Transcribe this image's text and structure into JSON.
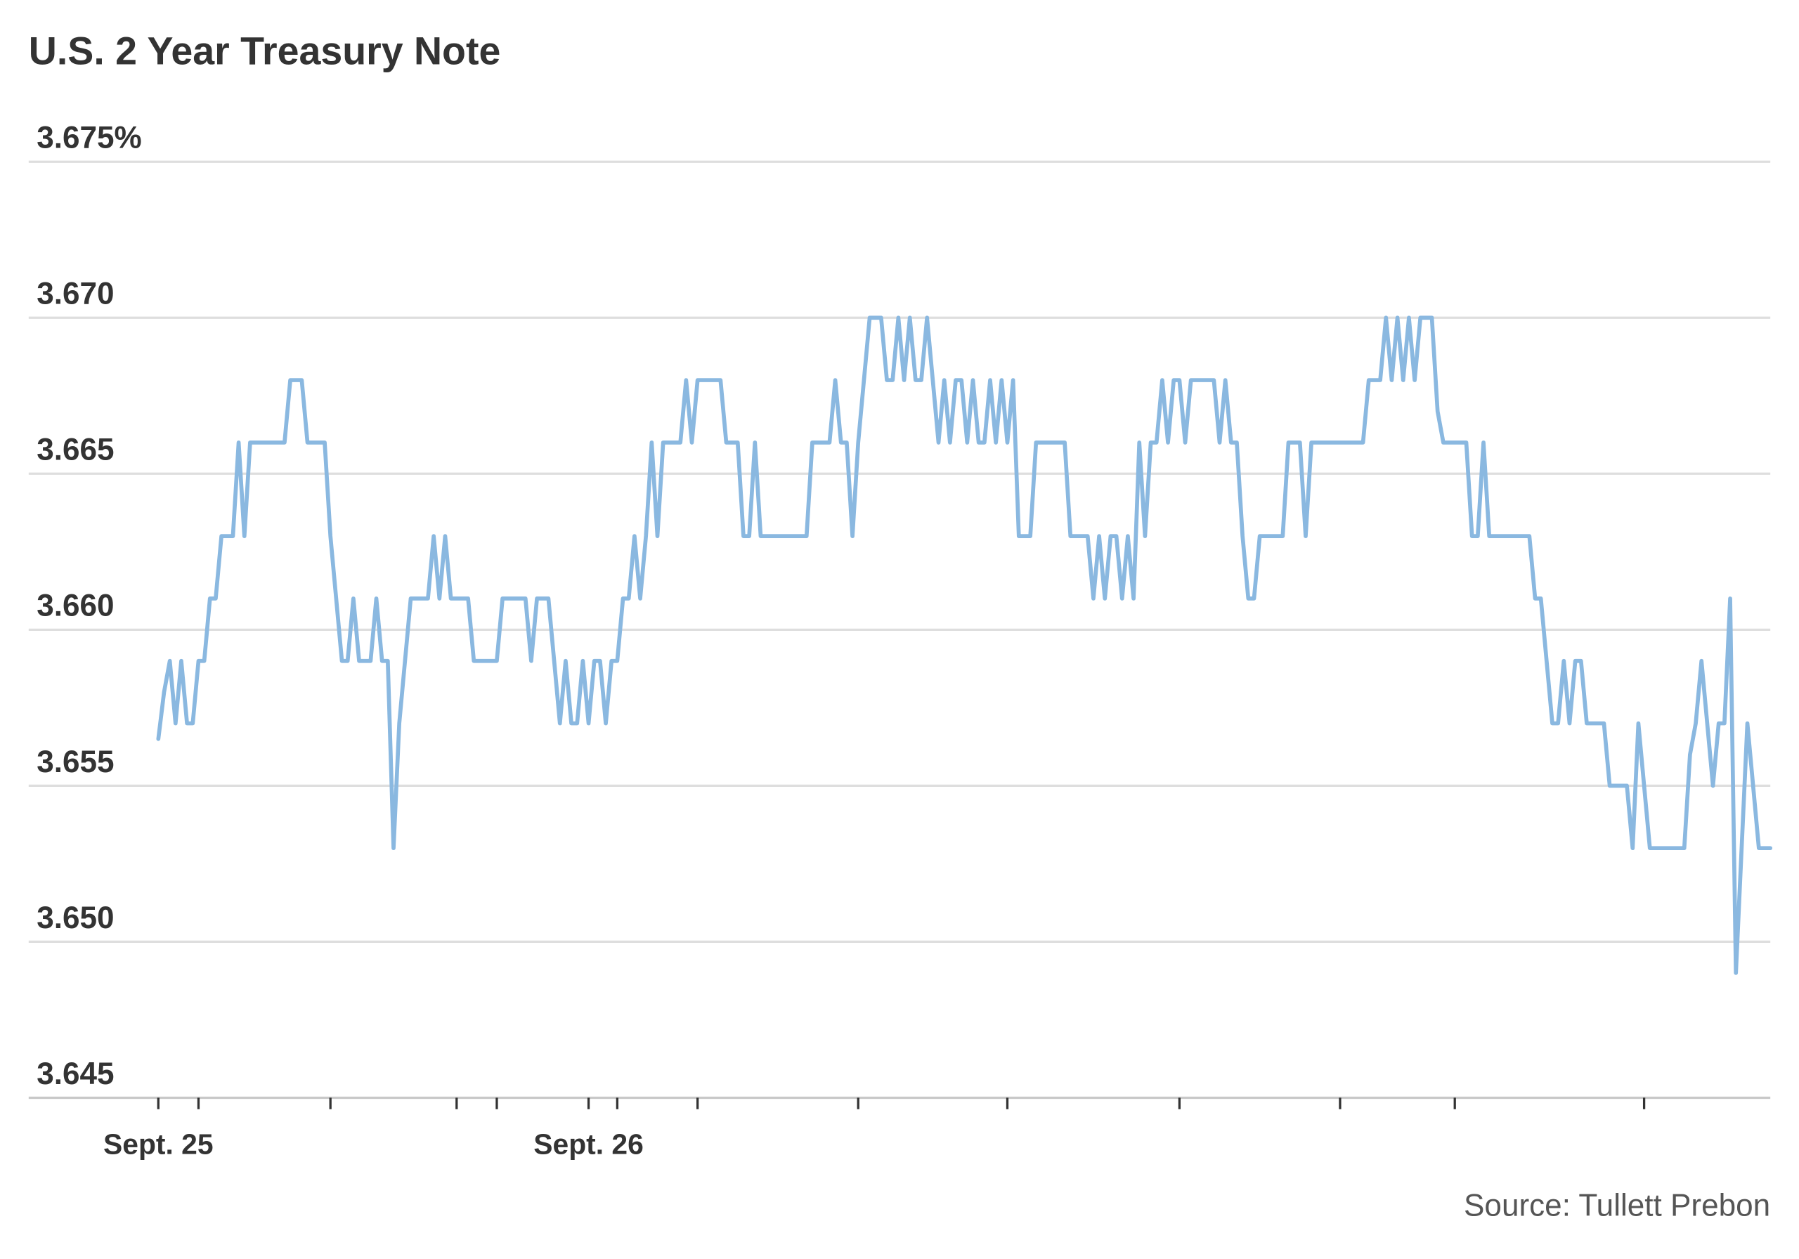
{
  "chart_data": {
    "type": "line",
    "title": "U.S. 2 Year Treasury Note",
    "source": "Source: Tullett Prebon",
    "color": "#8ab8e0",
    "grid": true,
    "ylim": [
      3.645,
      3.675
    ],
    "yticks": [
      3.645,
      {
        "value": 3.65,
        "label": "3.650"
      },
      3.655,
      {
        "value": 3.66,
        "label": "3.660"
      },
      3.665,
      {
        "value": 3.67,
        "label": "3.670"
      },
      {
        "value": 3.675,
        "label": "3.675%"
      }
    ],
    "xticks": [
      0,
      7,
      30,
      52,
      59,
      75,
      80,
      94,
      122,
      148,
      178,
      206,
      226,
      259
    ],
    "categories": [
      "Sept. 25",
      null,
      null,
      null,
      null,
      null,
      null,
      null,
      null,
      null,
      null,
      null,
      null,
      null,
      null,
      null,
      null,
      null,
      null,
      null,
      null,
      null,
      null,
      null,
      null,
      null,
      null,
      null,
      null,
      null,
      null,
      null,
      null,
      null,
      null,
      null,
      null,
      null,
      null,
      null,
      null,
      null,
      null,
      null,
      null,
      null,
      null,
      null,
      null,
      null,
      null,
      null,
      null,
      null,
      null,
      null,
      null,
      null,
      null,
      null,
      null,
      null,
      null,
      null,
      null,
      null,
      null,
      null,
      null,
      null,
      null,
      null,
      null,
      null,
      null,
      "Sept. 26",
      null,
      null,
      null,
      null,
      null,
      null,
      null,
      null,
      null,
      null,
      null,
      null,
      null,
      null,
      null,
      null,
      null,
      null,
      null,
      null,
      null,
      null,
      null,
      null,
      null,
      null,
      null,
      null,
      null,
      null,
      null,
      null,
      null,
      null,
      null,
      null,
      null,
      null,
      null,
      null,
      null,
      null,
      null,
      null,
      null,
      null,
      null,
      null,
      null,
      null,
      null,
      null,
      null,
      null,
      null,
      null,
      null,
      null,
      null,
      null,
      null,
      null,
      null,
      null,
      null,
      null,
      null,
      null,
      null,
      null,
      null,
      null,
      null,
      null,
      null,
      null,
      null,
      null,
      null,
      null,
      null,
      null,
      null,
      null,
      null,
      null,
      null,
      null,
      null,
      null,
      null,
      null,
      null,
      null,
      null,
      null,
      null,
      null,
      null,
      null,
      null,
      null,
      null,
      null,
      null,
      null,
      null,
      null,
      null,
      null,
      null,
      null,
      null,
      null,
      null,
      null,
      null,
      null,
      null,
      null,
      null,
      null,
      null,
      null,
      null,
      null,
      null,
      null,
      null,
      null,
      null,
      null,
      null,
      null,
      null,
      null,
      null,
      null,
      null,
      null,
      null,
      null,
      null,
      null,
      null,
      null,
      null,
      null,
      null,
      null,
      null,
      null,
      null,
      null,
      null,
      null,
      null,
      null,
      null,
      null,
      null,
      null,
      null,
      null,
      null,
      null,
      null,
      null,
      null,
      null,
      null,
      null,
      null,
      null,
      null,
      null,
      null,
      null,
      null,
      null,
      null,
      null,
      null,
      null,
      null,
      null,
      null,
      null,
      null,
      null,
      null,
      null,
      null,
      null,
      null,
      null,
      null,
      null,
      null,
      null,
      null,
      null,
      null,
      null,
      null,
      null
    ],
    "values": [
      3.6565,
      3.658,
      3.659,
      3.657,
      3.659,
      3.657,
      3.657,
      3.659,
      3.659,
      3.661,
      3.661,
      3.663,
      3.663,
      3.663,
      3.666,
      3.663,
      3.666,
      3.666,
      3.666,
      3.666,
      3.666,
      3.666,
      3.666,
      3.668,
      3.668,
      3.668,
      3.666,
      3.666,
      3.666,
      3.666,
      3.663,
      3.661,
      3.659,
      3.659,
      3.661,
      3.659,
      3.659,
      3.659,
      3.661,
      3.659,
      3.659,
      3.653,
      3.657,
      3.659,
      3.661,
      3.661,
      3.661,
      3.661,
      3.663,
      3.661,
      3.663,
      3.661,
      3.661,
      3.661,
      3.661,
      3.659,
      3.659,
      3.659,
      3.659,
      3.659,
      3.661,
      3.661,
      3.661,
      3.661,
      3.661,
      3.659,
      3.661,
      3.661,
      3.661,
      3.659,
      3.657,
      3.659,
      3.657,
      3.657,
      3.659,
      3.657,
      3.659,
      3.659,
      3.657,
      3.659,
      3.659,
      3.661,
      3.661,
      3.663,
      3.661,
      3.663,
      3.666,
      3.663,
      3.666,
      3.666,
      3.666,
      3.666,
      3.668,
      3.666,
      3.668,
      3.668,
      3.668,
      3.668,
      3.668,
      3.666,
      3.666,
      3.666,
      3.663,
      3.663,
      3.666,
      3.663,
      3.663,
      3.663,
      3.663,
      3.663,
      3.663,
      3.663,
      3.663,
      3.663,
      3.666,
      3.666,
      3.666,
      3.666,
      3.668,
      3.666,
      3.666,
      3.663,
      3.666,
      3.668,
      3.67,
      3.67,
      3.67,
      3.668,
      3.668,
      3.67,
      3.668,
      3.67,
      3.668,
      3.668,
      3.67,
      3.668,
      3.666,
      3.668,
      3.666,
      3.668,
      3.668,
      3.666,
      3.668,
      3.666,
      3.666,
      3.668,
      3.666,
      3.668,
      3.666,
      3.668,
      3.663,
      3.663,
      3.663,
      3.666,
      3.666,
      3.666,
      3.666,
      3.666,
      3.666,
      3.663,
      3.663,
      3.663,
      3.663,
      3.661,
      3.663,
      3.661,
      3.663,
      3.663,
      3.661,
      3.663,
      3.661,
      3.666,
      3.663,
      3.666,
      3.666,
      3.668,
      3.666,
      3.668,
      3.668,
      3.666,
      3.668,
      3.668,
      3.668,
      3.668,
      3.668,
      3.666,
      3.668,
      3.666,
      3.666,
      3.663,
      3.661,
      3.661,
      3.663,
      3.663,
      3.663,
      3.663,
      3.663,
      3.666,
      3.666,
      3.666,
      3.663,
      3.666,
      3.666,
      3.666,
      3.666,
      3.666,
      3.666,
      3.666,
      3.666,
      3.666,
      3.666,
      3.668,
      3.668,
      3.668,
      3.67,
      3.668,
      3.67,
      3.668,
      3.67,
      3.668,
      3.67,
      3.67,
      3.67,
      3.667,
      3.666,
      3.666,
      3.666,
      3.666,
      3.666,
      3.663,
      3.663,
      3.666,
      3.663,
      3.663,
      3.663,
      3.663,
      3.663,
      3.663,
      3.663,
      3.663,
      3.661,
      3.661,
      3.659,
      3.657,
      3.657,
      3.659,
      3.657,
      3.659,
      3.659,
      3.657,
      3.657,
      3.657,
      3.657,
      3.655,
      3.655,
      3.655,
      3.655,
      3.653,
      3.657,
      3.655,
      3.653,
      3.653,
      3.653,
      3.653,
      3.653,
      3.653,
      3.653,
      3.656,
      3.657,
      3.659,
      3.657,
      3.655,
      3.657,
      3.657,
      3.661,
      3.649,
      3.653,
      3.657,
      3.655,
      3.653,
      3.653,
      3.653
    ]
  }
}
